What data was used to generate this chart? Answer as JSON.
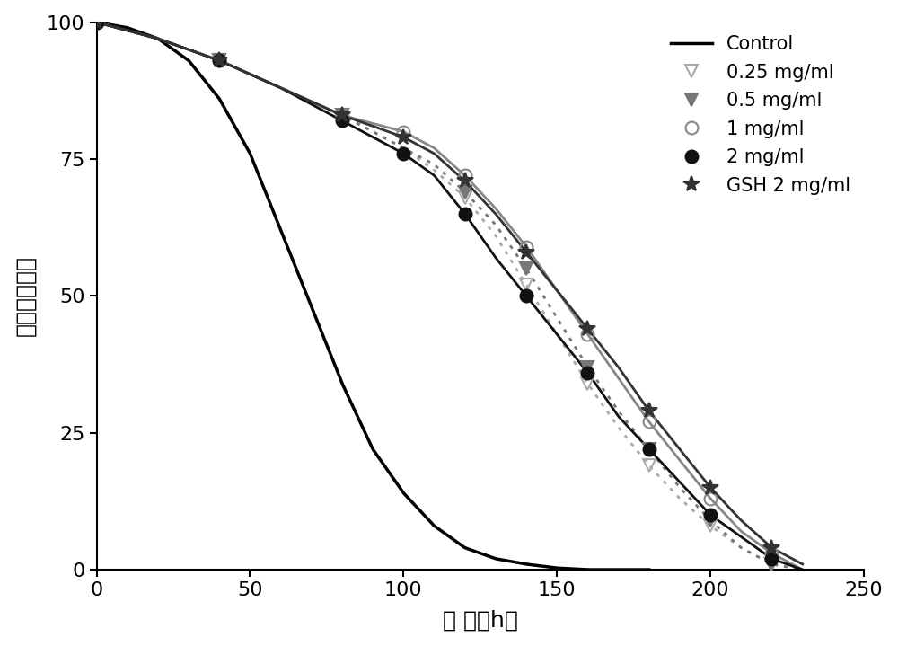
{
  "xlabel": "时 间（h）",
  "ylabel": "存活率（％）",
  "xlim": [
    0,
    250
  ],
  "ylim": [
    0,
    100
  ],
  "xticks": [
    0,
    50,
    100,
    150,
    200,
    250
  ],
  "yticks": [
    0,
    25,
    50,
    75,
    100
  ],
  "background_color": "#ffffff",
  "series": [
    {
      "label": "Control",
      "color": "#000000",
      "linestyle": "solid",
      "linewidth": 2.5,
      "marker": "none",
      "markersize": 0,
      "fillstyle": "full",
      "x": [
        0,
        10,
        20,
        30,
        40,
        50,
        60,
        70,
        80,
        90,
        100,
        110,
        120,
        130,
        140,
        150,
        160,
        170,
        180
      ],
      "y": [
        100,
        99,
        97,
        93,
        86,
        76,
        62,
        48,
        34,
        22,
        14,
        8,
        4,
        2,
        1,
        0.3,
        0,
        0,
        0
      ]
    },
    {
      "label": "0.25 mg/ml",
      "color": "#aaaaaa",
      "linestyle": "dotted",
      "linewidth": 2.0,
      "marker": "v",
      "markersize": 10,
      "fillstyle": "none",
      "x": [
        0,
        20,
        40,
        60,
        80,
        100,
        110,
        120,
        130,
        140,
        150,
        160,
        170,
        180,
        190,
        200,
        210,
        220,
        230
      ],
      "y": [
        100,
        97,
        93,
        88,
        83,
        77,
        73,
        68,
        61,
        52,
        43,
        34,
        26,
        19,
        13,
        8,
        4,
        1,
        0
      ]
    },
    {
      "label": "0.5 mg/ml",
      "color": "#777777",
      "linestyle": "dotted",
      "linewidth": 2.0,
      "marker": "v",
      "markersize": 10,
      "fillstyle": "full",
      "x": [
        0,
        20,
        40,
        60,
        80,
        100,
        110,
        120,
        130,
        140,
        150,
        160,
        170,
        180,
        190,
        200,
        210,
        220,
        230
      ],
      "y": [
        100,
        97,
        93,
        88,
        83,
        77,
        74,
        69,
        63,
        55,
        46,
        37,
        29,
        22,
        15,
        9,
        4,
        1,
        0
      ]
    },
    {
      "label": "1 mg/ml",
      "color": "#888888",
      "linestyle": "solid",
      "linewidth": 2.0,
      "marker": "o",
      "markersize": 10,
      "fillstyle": "none",
      "x": [
        0,
        20,
        40,
        60,
        80,
        100,
        110,
        120,
        130,
        140,
        150,
        160,
        170,
        180,
        190,
        200,
        210,
        220,
        230
      ],
      "y": [
        100,
        97,
        93,
        88,
        83,
        80,
        77,
        72,
        66,
        59,
        51,
        43,
        35,
        27,
        20,
        13,
        7,
        3,
        0
      ]
    },
    {
      "label": "2 mg/ml",
      "color": "#111111",
      "linestyle": "solid",
      "linewidth": 2.0,
      "marker": "o",
      "markersize": 10,
      "fillstyle": "full",
      "x": [
        0,
        20,
        40,
        60,
        80,
        100,
        110,
        120,
        130,
        140,
        150,
        160,
        170,
        180,
        190,
        200,
        210,
        220,
        230
      ],
      "y": [
        100,
        97,
        93,
        88,
        82,
        76,
        72,
        65,
        57,
        50,
        43,
        36,
        28,
        22,
        16,
        10,
        6,
        2,
        0
      ]
    },
    {
      "label": "GSH 2 mg/ml",
      "color": "#333333",
      "linestyle": "solid",
      "linewidth": 2.0,
      "marker": "*",
      "markersize": 13,
      "fillstyle": "full",
      "x": [
        0,
        20,
        40,
        60,
        80,
        100,
        110,
        120,
        130,
        140,
        150,
        160,
        170,
        180,
        190,
        200,
        210,
        220,
        230
      ],
      "y": [
        100,
        97,
        93,
        88,
        83,
        79,
        76,
        71,
        65,
        58,
        51,
        44,
        37,
        29,
        22,
        15,
        9,
        4,
        1
      ]
    }
  ]
}
